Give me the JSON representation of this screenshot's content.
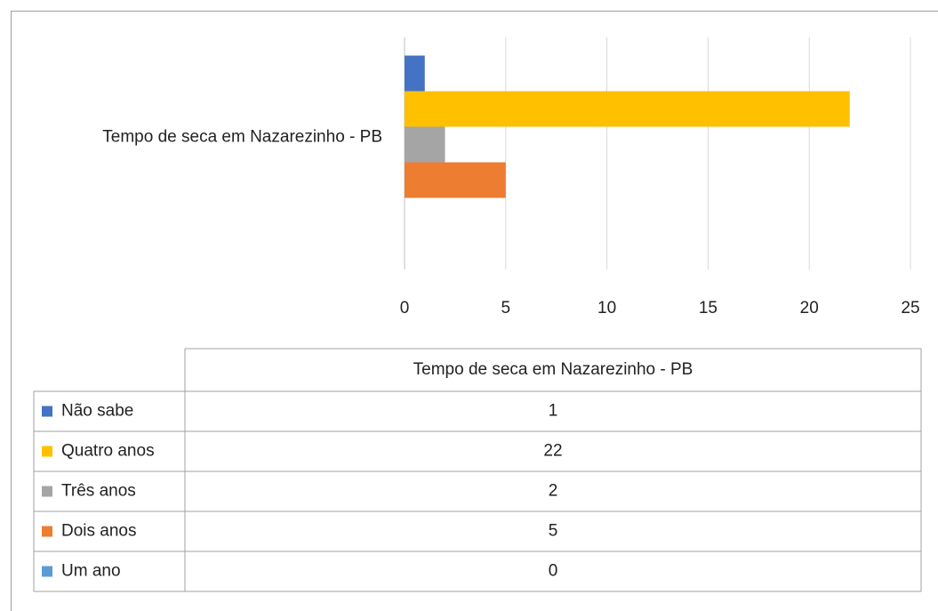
{
  "chart_data": {
    "type": "bar",
    "orientation": "horizontal",
    "categories": [
      "Tempo de seca em Nazarezinho - PB"
    ],
    "series": [
      {
        "name": "Não sabe",
        "color": "#4472c4",
        "values": [
          1
        ]
      },
      {
        "name": "Quatro anos",
        "color": "#ffc000",
        "values": [
          22
        ]
      },
      {
        "name": "Três anos",
        "color": "#a5a5a5",
        "values": [
          2
        ]
      },
      {
        "name": "Dois anos",
        "color": "#ed7d31",
        "values": [
          5
        ]
      },
      {
        "name": "Um ano",
        "color": "#5b9bd5",
        "values": [
          0
        ]
      }
    ],
    "xlim": [
      0,
      25
    ],
    "xticks": [
      0,
      5,
      10,
      15,
      20,
      25
    ],
    "grid": true,
    "data_table": true
  }
}
